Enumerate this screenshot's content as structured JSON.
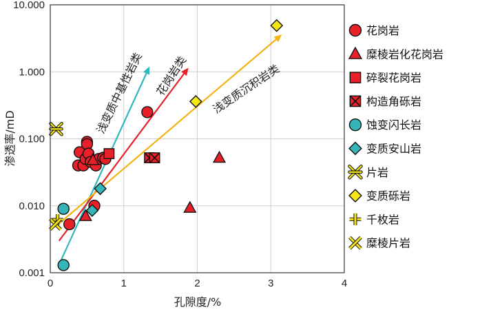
{
  "chart_data": {
    "type": "scatter",
    "xlabel": "孔隙度/%",
    "ylabel": "渗透率/mD",
    "xlim": [
      0,
      4
    ],
    "ylim": [
      0.001,
      10
    ],
    "y_scale": "log",
    "x_ticks": [
      "0",
      "1",
      "2",
      "3",
      "4"
    ],
    "y_ticks": [
      "0.001",
      "0.010",
      "0.100",
      "1.000",
      "10.000"
    ],
    "grid": true,
    "legend_position": "right",
    "colors": {
      "red": "#e8202a",
      "cyan": "#35b5b8",
      "yellow": "#f5e614",
      "line_red": "#e5202b",
      "line_cyan": "#2fb8bb",
      "line_yellow": "#f2b315"
    },
    "series": [
      {
        "name": "花岗岩",
        "marker": "circle",
        "color": "#e8202a",
        "points": [
          [
            0.38,
            0.04
          ],
          [
            0.4,
            0.063
          ],
          [
            0.45,
            0.04
          ],
          [
            0.48,
            0.05
          ],
          [
            0.5,
            0.09
          ],
          [
            0.5,
            0.083
          ],
          [
            0.52,
            0.06
          ],
          [
            0.55,
            0.045
          ],
          [
            0.62,
            0.04
          ],
          [
            0.66,
            0.05
          ],
          [
            0.72,
            0.052
          ],
          [
            0.75,
            0.05
          ],
          [
            0.26,
            0.0053
          ],
          [
            0.6,
            0.01
          ],
          [
            1.32,
            0.25
          ]
        ]
      },
      {
        "name": "糜棱岩化花岗岩",
        "marker": "triangle",
        "color": "#e8202a",
        "points": [
          [
            0.48,
            0.007
          ],
          [
            0.58,
            0.048
          ],
          [
            1.9,
            0.0093
          ],
          [
            2.3,
            0.052
          ]
        ]
      },
      {
        "name": "碎裂花岗岩",
        "marker": "square",
        "color": "#e8202a",
        "points": [
          [
            0.8,
            0.06
          ]
        ]
      },
      {
        "name": "构造角砾岩",
        "marker": "xsquare",
        "color": "#e8202a",
        "points": [
          [
            1.35,
            0.052
          ],
          [
            1.42,
            0.052
          ]
        ]
      },
      {
        "name": "蚀变闪长岩",
        "marker": "circle",
        "color": "#35b5b8",
        "points": [
          [
            0.18,
            0.0013
          ],
          [
            0.18,
            0.009
          ]
        ]
      },
      {
        "name": "变质安山岩",
        "marker": "diamond",
        "color": "#35b5b8",
        "points": [
          [
            0.57,
            0.0085
          ],
          [
            0.68,
            0.018
          ]
        ]
      },
      {
        "name": "片岩",
        "marker": "asterisk",
        "color": "#f5e614",
        "points": [
          [
            0.08,
            0.14
          ]
        ]
      },
      {
        "name": "变质砾岩",
        "marker": "diamond",
        "color": "#f5e614",
        "points": [
          [
            1.98,
            0.36
          ],
          [
            3.08,
            4.9
          ]
        ]
      },
      {
        "name": "千枚岩",
        "marker": "plus",
        "color": "#f5e614",
        "points": [
          [
            0.1,
            0.0062
          ]
        ]
      },
      {
        "name": "糜棱片岩",
        "marker": "xcross",
        "color": "#f5e614",
        "points": [
          [
            0.07,
            0.0053
          ]
        ]
      }
    ],
    "trend_lines": [
      {
        "label": "浅变质中基性岩类",
        "color": "#2fb8bb",
        "from": [
          0.13,
          0.0014
        ],
        "to": [
          1.35,
          1.2
        ]
      },
      {
        "label": "花岗岩类",
        "color": "#e5202b",
        "from": [
          0.12,
          0.003
        ],
        "to": [
          1.88,
          1.15
        ]
      },
      {
        "label": "浅变质沉积岩类",
        "color": "#f2b315",
        "from": [
          0.1,
          0.0052
        ],
        "to": [
          3.15,
          3.6
        ]
      }
    ]
  }
}
